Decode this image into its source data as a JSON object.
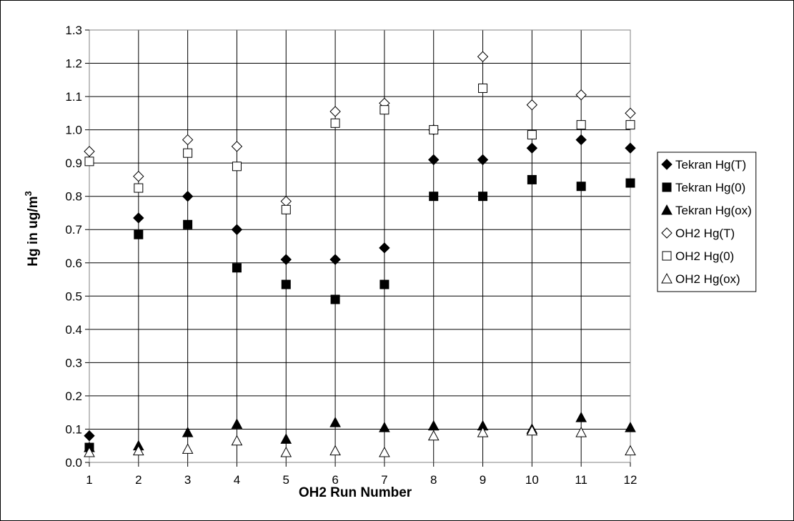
{
  "chart_data": {
    "type": "scatter",
    "xlabel": "OH2 Run Number",
    "ylabel": "Hg in ug/m",
    "ylabel_sup": "3",
    "xlim": [
      1,
      12
    ],
    "ylim": [
      0.0,
      1.3
    ],
    "x_ticks": [
      "1",
      "2",
      "3",
      "4",
      "5",
      "6",
      "7",
      "8",
      "9",
      "10",
      "11",
      "12"
    ],
    "y_ticks": [
      "0.0",
      "0.1",
      "0.2",
      "0.3",
      "0.4",
      "0.5",
      "0.6",
      "0.7",
      "0.8",
      "0.9",
      "1.0",
      "1.1",
      "1.2",
      "1.3"
    ],
    "grid": true,
    "legend_position": "right",
    "x": [
      1,
      2,
      3,
      4,
      5,
      6,
      7,
      8,
      9,
      10,
      11,
      12
    ],
    "series": [
      {
        "name": "Tekran Hg(T)",
        "marker": "diamond",
        "fill": "filled",
        "values": [
          0.08,
          0.735,
          0.8,
          0.7,
          0.61,
          0.61,
          0.645,
          0.91,
          0.91,
          0.945,
          0.97,
          0.945
        ]
      },
      {
        "name": "Tekran Hg(0)",
        "marker": "square",
        "fill": "filled",
        "values": [
          0.045,
          0.685,
          0.715,
          0.585,
          0.535,
          0.49,
          0.535,
          0.8,
          0.8,
          0.85,
          0.83,
          0.84
        ]
      },
      {
        "name": "Tekran Hg(ox)",
        "marker": "triangle",
        "fill": "filled",
        "values": [
          0.045,
          0.05,
          0.09,
          0.115,
          0.07,
          0.12,
          0.105,
          0.11,
          0.11,
          0.1,
          0.135,
          0.105
        ]
      },
      {
        "name": "OH2 Hg(T)",
        "marker": "diamond",
        "fill": "open",
        "values": [
          0.935,
          0.86,
          0.97,
          0.95,
          0.785,
          1.055,
          1.08,
          1.0,
          1.22,
          1.075,
          1.105,
          1.05
        ]
      },
      {
        "name": "OH2 Hg(0)",
        "marker": "square",
        "fill": "open",
        "values": [
          0.905,
          0.825,
          0.93,
          0.89,
          0.76,
          1.02,
          1.06,
          1.0,
          1.125,
          0.985,
          1.015,
          1.015
        ]
      },
      {
        "name": "OH2 Hg(ox)",
        "marker": "triangle",
        "fill": "open",
        "values": [
          0.03,
          0.035,
          0.04,
          0.065,
          0.03,
          0.035,
          0.03,
          0.08,
          0.09,
          0.095,
          0.09,
          0.035
        ]
      }
    ]
  }
}
